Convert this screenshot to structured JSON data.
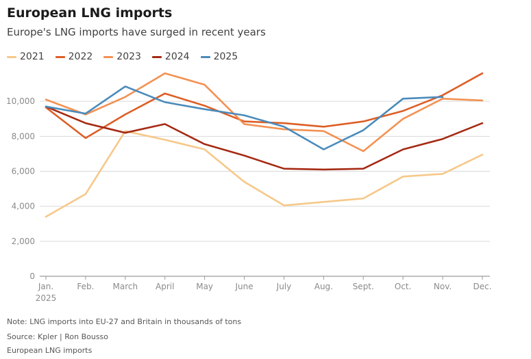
{
  "header": {
    "title": "European LNG imports",
    "subtitle": "Europe's LNG imports have surged in recent years"
  },
  "footer": {
    "note": "Note: LNG imports into EU-27 and Britain in thousands of tons",
    "source": "Source: Kpler | Ron Bousso",
    "caption": "European LNG imports"
  },
  "chart_data": {
    "type": "line",
    "title": "European LNG imports",
    "subtitle": "Europe's LNG imports have surged in recent years",
    "xlabel": "",
    "ylabel": "",
    "categories": [
      "Jan.",
      "Feb.",
      "March",
      "April",
      "May",
      "June",
      "July",
      "Aug.",
      "Sept.",
      "Oct.",
      "Nov.",
      "Dec."
    ],
    "first_category_sublabel": "2025",
    "ylim": [
      0,
      12000
    ],
    "yticks": [
      0,
      2000,
      4000,
      6000,
      8000,
      10000
    ],
    "ytick_labels": [
      "0",
      "2,000",
      "4,000",
      "6,000",
      "8,000",
      "10,000"
    ],
    "grid": true,
    "legend": "top-left",
    "series": [
      {
        "name": "2021",
        "color": "#f6c889",
        "values": [
          3400,
          4700,
          8300,
          7800,
          7250,
          5400,
          4050,
          4250,
          4450,
          5700,
          5850,
          6950
        ]
      },
      {
        "name": "2022",
        "color": "#dd5e25",
        "values": [
          9650,
          7900,
          9250,
          10450,
          9750,
          8850,
          8750,
          8550,
          8850,
          9450,
          10350,
          11600
        ]
      },
      {
        "name": "2023",
        "color": "#f39152",
        "values": [
          10100,
          9250,
          10250,
          11600,
          10950,
          8700,
          8400,
          8300,
          7150,
          9000,
          10150,
          10050
        ]
      },
      {
        "name": "2024",
        "color": "#a52a14",
        "values": [
          9700,
          8750,
          8200,
          8700,
          7550,
          6900,
          6150,
          6100,
          6150,
          7250,
          7850,
          8750
        ]
      },
      {
        "name": "2025",
        "color": "#4a8bbb",
        "values": [
          9700,
          9300,
          10850,
          9950,
          9550,
          9200,
          8550,
          7250,
          8350,
          10150,
          10250,
          null
        ]
      }
    ]
  }
}
